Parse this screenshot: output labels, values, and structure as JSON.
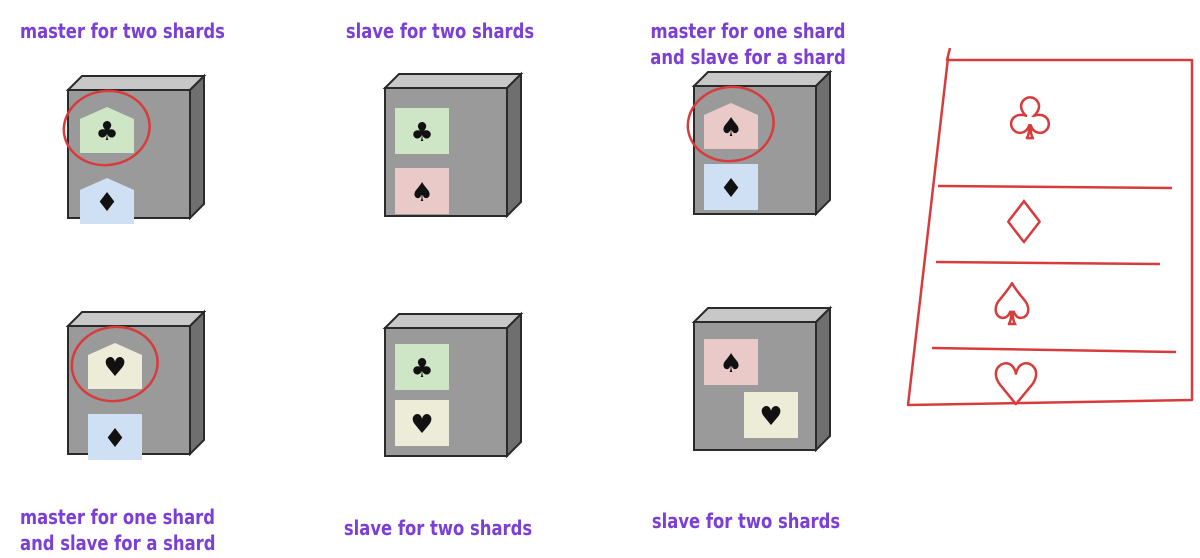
{
  "servers": [
    {
      "label_lines": [
        "master for two shards"
      ],
      "shards": [
        {
          "suit": "clubs",
          "glyph": "♣",
          "card": "house",
          "color": "#cfe6c6",
          "highlighted": true
        },
        {
          "suit": "diamonds",
          "glyph": "♦",
          "card": "house",
          "color": "#cfe0f4",
          "highlighted": false
        }
      ]
    },
    {
      "label_lines": [
        "slave for two shards"
      ],
      "shards": [
        {
          "suit": "clubs",
          "glyph": "♣",
          "card": "square",
          "color": "#cfe6c6",
          "highlighted": false
        },
        {
          "suit": "spades",
          "glyph": "♠",
          "card": "square",
          "color": "#eac9c9",
          "highlighted": false
        }
      ]
    },
    {
      "label_lines": [
        "master for one shard",
        "and slave for a shard"
      ],
      "shards": [
        {
          "suit": "spades",
          "glyph": "♠",
          "card": "house",
          "color": "#eac9c9",
          "highlighted": true
        },
        {
          "suit": "diamonds",
          "glyph": "♦",
          "card": "square",
          "color": "#cfe0f4",
          "highlighted": false
        }
      ]
    },
    {
      "label_lines": [
        "master for one shard",
        "and slave for a shard"
      ],
      "shards": [
        {
          "suit": "hearts",
          "glyph": "♥",
          "card": "house",
          "color": "#ececd8",
          "highlighted": true
        },
        {
          "suit": "diamonds",
          "glyph": "♦",
          "card": "square",
          "color": "#cfe0f4",
          "highlighted": false
        }
      ]
    },
    {
      "label_lines": [
        "slave for two shards"
      ],
      "shards": [
        {
          "suit": "clubs",
          "glyph": "♣",
          "card": "square",
          "color": "#cfe6c6",
          "highlighted": false
        },
        {
          "suit": "hearts",
          "glyph": "♥",
          "card": "square",
          "color": "#ececd8",
          "highlighted": false
        }
      ]
    },
    {
      "label_lines": [
        "slave for two shards"
      ],
      "shards": [
        {
          "suit": "spades",
          "glyph": "♠",
          "card": "square",
          "color": "#eac9c9",
          "highlighted": false
        },
        {
          "suit": "hearts",
          "glyph": "♥",
          "card": "square",
          "color": "#ececd8",
          "highlighted": false
        }
      ]
    }
  ],
  "shard_table": {
    "rows": [
      {
        "suit": "clubs",
        "glyph": "♣"
      },
      {
        "suit": "diamonds",
        "glyph": "♦"
      },
      {
        "suit": "spades",
        "glyph": "♠"
      },
      {
        "suit": "hearts",
        "glyph": "♥"
      }
    ]
  },
  "colors": {
    "label": "#7b3fd6",
    "annotation": "#d83b3b",
    "server_front": "#9a9a9a",
    "server_top": "#c8c8c8",
    "server_side": "#6f6f6f",
    "server_edge": "#2a2a2a"
  }
}
